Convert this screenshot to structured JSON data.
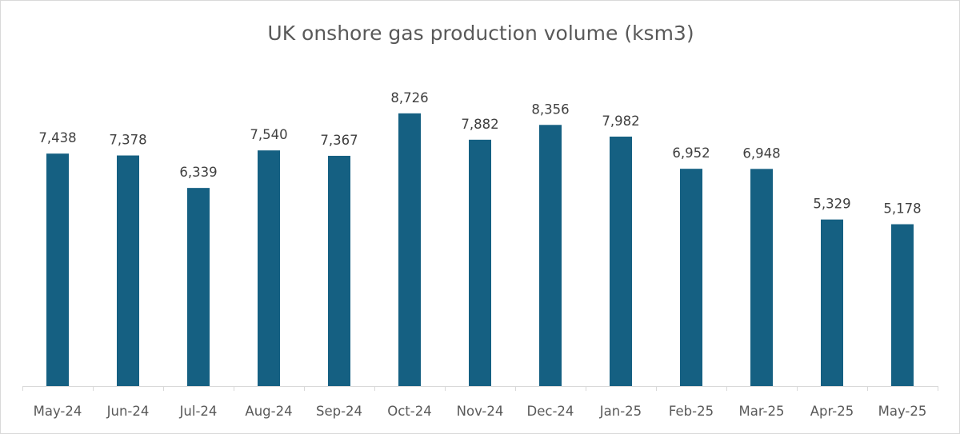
{
  "chart_data": {
    "type": "bar",
    "title": "UK onshore gas production volume (ksm3)",
    "categories": [
      "May-24",
      "Jun-24",
      "Jul-24",
      "Aug-24",
      "Sep-24",
      "Oct-24",
      "Nov-24",
      "Dec-24",
      "Jan-25",
      "Feb-25",
      "Mar-25",
      "Apr-25",
      "May-25"
    ],
    "values": [
      7438,
      7378,
      6339,
      7540,
      7367,
      8726,
      7882,
      8356,
      7982,
      6952,
      6948,
      5329,
      5178
    ],
    "data_labels": [
      "7,438",
      "7,378",
      "6,339",
      "7,540",
      "7,367",
      "8,726",
      "7,882",
      "8,356",
      "7,982",
      "6,952",
      "6,948",
      "5,329",
      "5,178"
    ],
    "xlabel": "",
    "ylabel": "",
    "ylim": [
      0,
      10000
    ],
    "grid": false,
    "legend": "none",
    "bar_color": "#156082"
  }
}
